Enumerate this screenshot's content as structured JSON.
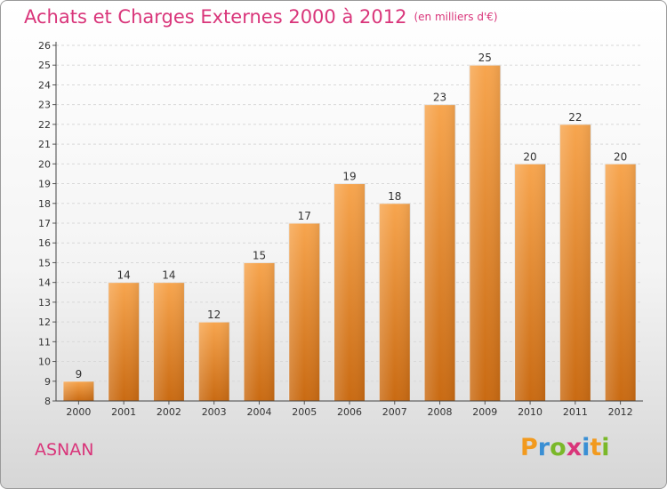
{
  "title": "Achats et Charges Externes 2000 à 2012",
  "subtitle": "(en milliers d'€)",
  "location": "ASNAN",
  "brand": {
    "letters": [
      "P",
      "r",
      "o",
      "x",
      "i",
      "t",
      "i"
    ],
    "colors": [
      "#f29a1e",
      "#3a8fd4",
      "#7ab829",
      "#d9357a",
      "#3a8fd4",
      "#f29a1e",
      "#7ab829"
    ]
  },
  "colors": {
    "title": "#d9357a",
    "bar_top": "#f7a54e",
    "bar_bottom": "#c96a12",
    "grid": "#d8d8d8"
  },
  "chart_data": {
    "type": "bar",
    "title": "Achats et Charges Externes 2000 à 2012",
    "subtitle": "(en milliers d'€)",
    "categories": [
      "2000",
      "2001",
      "2002",
      "2003",
      "2004",
      "2005",
      "2006",
      "2007",
      "2008",
      "2009",
      "2010",
      "2011",
      "2012"
    ],
    "values": [
      9,
      14,
      14,
      12,
      15,
      17,
      19,
      18,
      23,
      25,
      20,
      22,
      20
    ],
    "ylim": [
      8,
      26
    ],
    "yticks": [
      8,
      9,
      10,
      11,
      12,
      13,
      14,
      15,
      16,
      17,
      18,
      19,
      20,
      21,
      22,
      23,
      24,
      25,
      26
    ],
    "grid": true,
    "xlabel": "",
    "ylabel": ""
  }
}
